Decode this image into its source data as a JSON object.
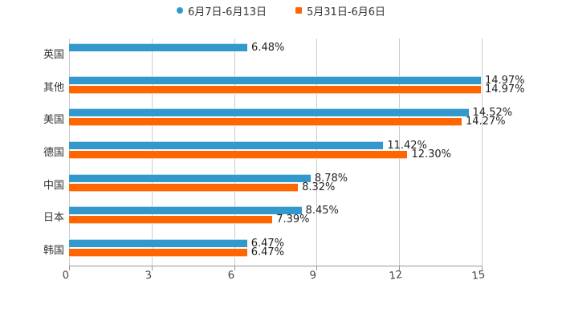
{
  "legend": [
    {
      "label": "6月7日-6月13日",
      "color": "#3399cc",
      "marker": "circle"
    },
    {
      "label": "5月31日-6月6日",
      "color": "#ff6600",
      "marker": "square"
    }
  ],
  "axis": {
    "ticks": [
      "0",
      "3",
      "6",
      "9",
      "12",
      "15"
    ]
  },
  "chart_data": {
    "type": "bar",
    "orientation": "horizontal",
    "title": "",
    "xlabel": "",
    "ylabel": "",
    "xlim": [
      0,
      15
    ],
    "grid": true,
    "legend_position": "top",
    "categories": [
      "英国",
      "其他",
      "美国",
      "德国",
      "中国",
      "日本",
      "韩国"
    ],
    "series": [
      {
        "name": "6月7日-6月13日",
        "color": "#3399cc",
        "values": [
          6.48,
          14.97,
          14.52,
          11.42,
          8.78,
          8.45,
          6.47
        ]
      },
      {
        "name": "5月31日-6月6日",
        "color": "#ff6600",
        "values": [
          null,
          14.97,
          14.27,
          12.3,
          8.32,
          7.39,
          6.47
        ]
      }
    ],
    "labels": [
      [
        "6.48%",
        null
      ],
      [
        "14.97%",
        "14.97%"
      ],
      [
        "14.52%",
        "14.27%"
      ],
      [
        "11.42%",
        "12.30%"
      ],
      [
        "8.78%",
        "8.32%"
      ],
      [
        "8.45%",
        "7.39%"
      ],
      [
        "6.47%",
        "6.47%"
      ]
    ]
  }
}
